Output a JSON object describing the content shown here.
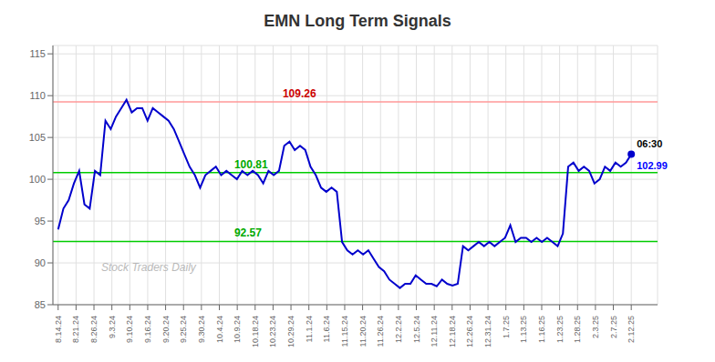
{
  "chart_data": {
    "type": "line",
    "title": "EMN Long Term Signals",
    "color": "#0000cc",
    "grid": true,
    "x": [
      0,
      1,
      2,
      3,
      4,
      5,
      6,
      7,
      8,
      9,
      10,
      11,
      12,
      13,
      14,
      15,
      16,
      17,
      18,
      19,
      20,
      21,
      22,
      23,
      24,
      25,
      26,
      27,
      28,
      29,
      30,
      31,
      32,
      33,
      34,
      35,
      36,
      37,
      38,
      39,
      40,
      41,
      42,
      43,
      44,
      45,
      46,
      47,
      48,
      49,
      50,
      51,
      52,
      53,
      54,
      55,
      56,
      57,
      58,
      59,
      60,
      61,
      62,
      63,
      64,
      65,
      66,
      67,
      68,
      69,
      70,
      71,
      72,
      73,
      74,
      75,
      76,
      77,
      78,
      79,
      80,
      81,
      82,
      83,
      84,
      85,
      86,
      87,
      88,
      89,
      90,
      91,
      92,
      93,
      94,
      95,
      96,
      97,
      98,
      99,
      100,
      101,
      102,
      103,
      104,
      105,
      106,
      107,
      108,
      109
    ],
    "values": [
      94.0,
      96.5,
      97.5,
      99.5,
      101.0,
      97.0,
      96.5,
      101.0,
      100.5,
      107.0,
      106.0,
      107.5,
      108.5,
      109.5,
      108.0,
      108.5,
      108.5,
      107.0,
      108.5,
      108.0,
      107.5,
      107.0,
      106.0,
      104.5,
      103.0,
      101.5,
      100.5,
      99.0,
      100.5,
      101.0,
      101.5,
      100.5,
      101.0,
      100.5,
      100.0,
      101.0,
      100.5,
      101.0,
      100.5,
      99.5,
      101.0,
      100.5,
      101.0,
      104.0,
      104.5,
      103.5,
      104.0,
      103.5,
      101.5,
      100.5,
      99.0,
      98.5,
      99.0,
      98.5,
      92.5,
      91.5,
      91.0,
      91.5,
      91.0,
      91.5,
      90.5,
      89.5,
      89.0,
      88.0,
      87.5,
      87.0,
      87.5,
      87.5,
      88.5,
      88.0,
      87.5,
      87.5,
      87.2,
      88.0,
      87.5,
      87.3,
      87.5,
      92.0,
      91.5,
      92.0,
      92.5,
      92.0,
      92.5,
      92.0,
      92.5,
      93.0,
      94.5,
      92.5,
      93.0,
      93.0,
      92.5,
      93.0,
      92.5,
      93.0,
      92.5,
      92.0,
      93.5,
      101.5,
      102.0,
      101.0,
      101.5,
      101.0,
      99.5,
      100.0,
      101.5,
      101.0,
      102.0,
      101.5,
      102.0,
      102.99
    ],
    "xlim": [
      -1,
      114
    ],
    "xticks": [
      {
        "value": 0,
        "label": "8.14.24"
      },
      {
        "value": 3.40625,
        "label": "8.21.24"
      },
      {
        "value": 6.8125,
        "label": "8.26.24"
      },
      {
        "value": 10.21875,
        "label": "9.3.24"
      },
      {
        "value": 13.625,
        "label": "9.10.24"
      },
      {
        "value": 17.03125,
        "label": "9.16.24"
      },
      {
        "value": 20.4375,
        "label": "9.20.24"
      },
      {
        "value": 23.84375,
        "label": "9.25.24"
      },
      {
        "value": 27.25,
        "label": "9.30.24"
      },
      {
        "value": 30.65625,
        "label": "10.4.24"
      },
      {
        "value": 34.0625,
        "label": "10.9.24"
      },
      {
        "value": 37.46875,
        "label": "10.18.24"
      },
      {
        "value": 40.875,
        "label": "10.23.24"
      },
      {
        "value": 44.28125,
        "label": "10.29.24"
      },
      {
        "value": 47.6875,
        "label": "11.1.24"
      },
      {
        "value": 51.09375,
        "label": "11.6.24"
      },
      {
        "value": 54.5,
        "label": "11.15.24"
      },
      {
        "value": 57.90625,
        "label": "11.20.24"
      },
      {
        "value": 61.3125,
        "label": "11.26.24"
      },
      {
        "value": 64.71875,
        "label": "12.2.24"
      },
      {
        "value": 68.125,
        "label": "12.5.24"
      },
      {
        "value": 71.53125,
        "label": "12.11.24"
      },
      {
        "value": 74.9375,
        "label": "12.18.24"
      },
      {
        "value": 78.34375,
        "label": "12.26.24"
      },
      {
        "value": 81.75,
        "label": "12.31.24"
      },
      {
        "value": 85.15625,
        "label": "1.7.25"
      },
      {
        "value": 88.5625,
        "label": "1.13.25"
      },
      {
        "value": 91.96875,
        "label": "1.16.25"
      },
      {
        "value": 95.375,
        "label": "1.23.25"
      },
      {
        "value": 98.78125,
        "label": "1.28.25"
      },
      {
        "value": 102.1875,
        "label": "2.3.25"
      },
      {
        "value": 105.59375,
        "label": "2.7.25"
      },
      {
        "value": 109,
        "label": "2.12.25"
      }
    ],
    "ylim": [
      85,
      116
    ],
    "yticks": [
      85,
      90,
      95,
      100,
      105,
      110,
      115
    ],
    "hlines": [
      {
        "value": 109.26,
        "color": "#ff9999",
        "label_color": "#cc0000"
      },
      {
        "value": 100.81,
        "color": "#00cc00",
        "label_color": "#00aa00"
      },
      {
        "value": 92.57,
        "color": "#00cc00",
        "label_color": "#00aa00"
      }
    ],
    "annotations": [
      {
        "text": "06:30",
        "color": "#000000"
      },
      {
        "text": "102.99",
        "color": "#0000ff"
      }
    ],
    "watermark": {
      "text": "Stock Traders Daily",
      "color": "#aaaaaa"
    }
  }
}
